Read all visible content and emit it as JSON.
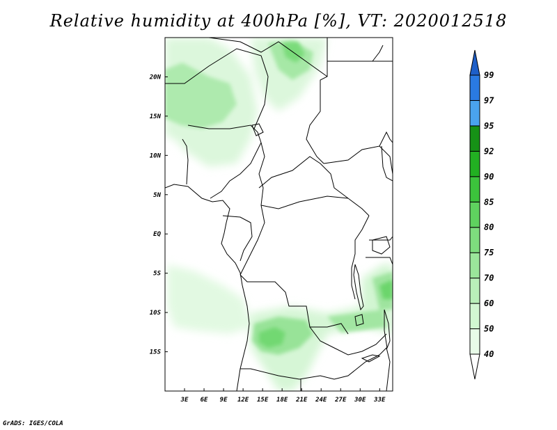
{
  "title": "Relative humidity at 400hPa [%], VT: 2020012518",
  "credit": "GrADS: IGES/COLA",
  "map": {
    "region": "Central Africa",
    "lon_range": [
      0,
      35
    ],
    "lat_range": [
      -20,
      25
    ],
    "lat_ticks": [
      {
        "value": 20,
        "label": "20N"
      },
      {
        "value": 15,
        "label": "15N"
      },
      {
        "value": 10,
        "label": "10N"
      },
      {
        "value": 5,
        "label": "5N"
      },
      {
        "value": 0,
        "label": "EQ"
      },
      {
        "value": -5,
        "label": "5S"
      },
      {
        "value": -10,
        "label": "10S"
      },
      {
        "value": -15,
        "label": "15S"
      }
    ],
    "lon_ticks": [
      {
        "value": 3,
        "label": "3E"
      },
      {
        "value": 6,
        "label": "6E"
      },
      {
        "value": 9,
        "label": "9E"
      },
      {
        "value": 12,
        "label": "12E"
      },
      {
        "value": 15,
        "label": "15E"
      },
      {
        "value": 18,
        "label": "18E"
      },
      {
        "value": 21,
        "label": "21E"
      },
      {
        "value": 24,
        "label": "24E"
      },
      {
        "value": 27,
        "label": "27E"
      },
      {
        "value": 30,
        "label": "30E"
      },
      {
        "value": 33,
        "label": "33E"
      }
    ]
  },
  "colorbar": {
    "levels": [
      "40",
      "50",
      "60",
      "70",
      "75",
      "80",
      "85",
      "90",
      "92",
      "95",
      "97",
      "99"
    ],
    "colors": [
      "#ffffff",
      "#e8fbe8",
      "#d2f7d2",
      "#b9efb9",
      "#9be69b",
      "#7edd7e",
      "#5fd25f",
      "#3cc33c",
      "#22b022",
      "#169116",
      "#4aa3ee",
      "#2a7ae2",
      "#1e5fc8"
    ]
  },
  "colors": {
    "boundary": "#000000",
    "humid_light": "#d8f7d8",
    "humid_mid": "#a9eaa9",
    "humid_strong": "#6fd86f"
  }
}
